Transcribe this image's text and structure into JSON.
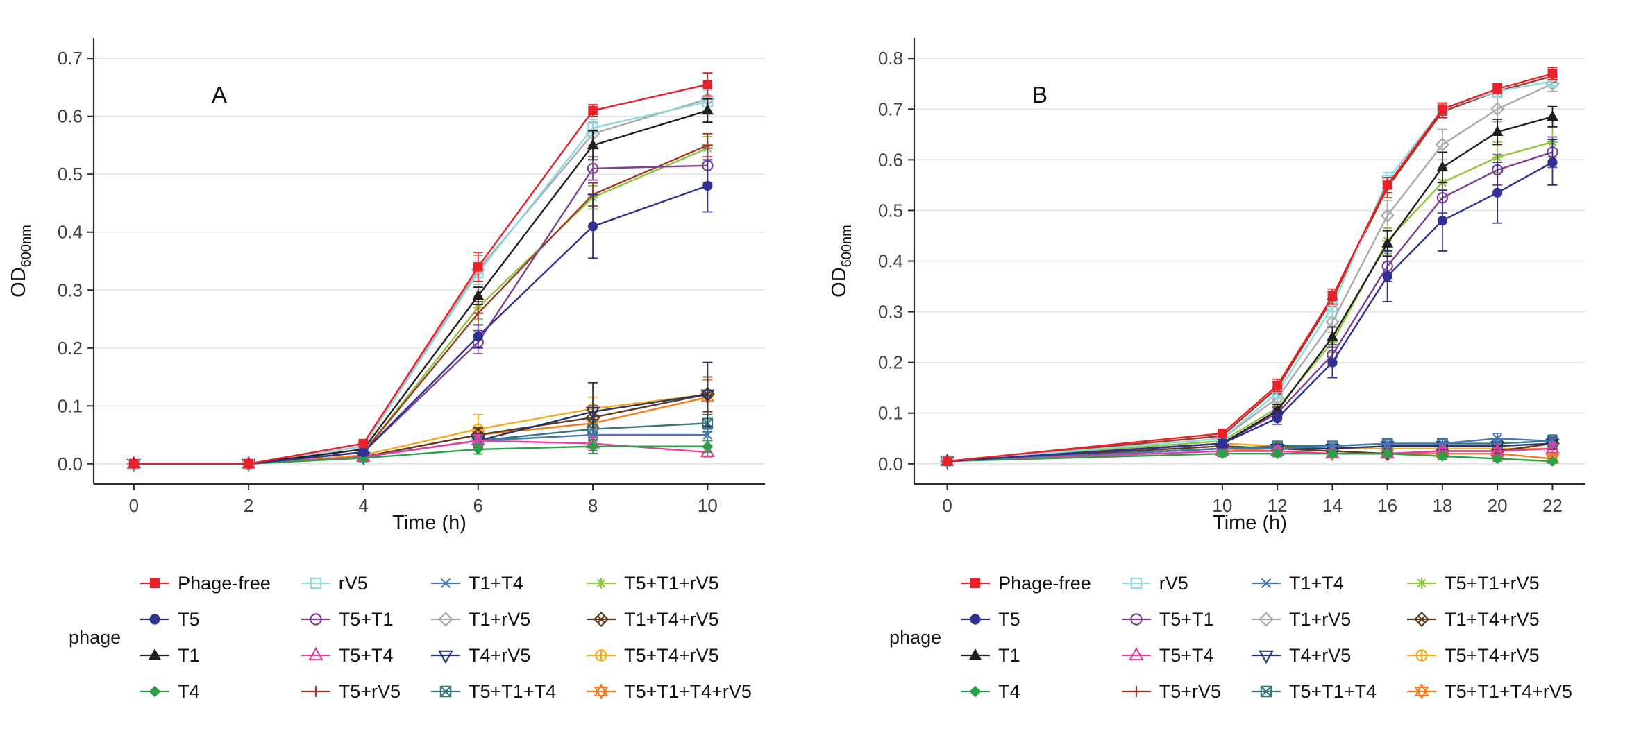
{
  "styles": {
    "background": "#ffffff",
    "grid_color": "#e3e3e3",
    "axis_color": "#2b2b2b",
    "tick_label_color": "#404040",
    "text_color": "#111111"
  },
  "figure": {
    "legend": {
      "title": "phage",
      "columns": 4,
      "rows": 4
    }
  },
  "series_styles": [
    {
      "name": "Phage-free",
      "color": "#ec2028",
      "marker": "square-filled"
    },
    {
      "name": "T5",
      "color": "#2e3192",
      "marker": "circle-filled"
    },
    {
      "name": "T1",
      "color": "#231f20",
      "marker": "triangle-filled"
    },
    {
      "name": "T4",
      "color": "#2ba147",
      "marker": "diamond-filled"
    },
    {
      "name": "rV5",
      "color": "#92d8e0",
      "marker": "square-open"
    },
    {
      "name": "T5+T1",
      "color": "#7f3f98",
      "marker": "circle-open"
    },
    {
      "name": "T5+T4",
      "color": "#e83e9c",
      "marker": "triangle-open"
    },
    {
      "name": "T5+rV5",
      "color": "#9e3a26",
      "marker": "plus"
    },
    {
      "name": "T1+T4",
      "color": "#4576b5",
      "marker": "x"
    },
    {
      "name": "T1+rV5",
      "color": "#a7a9ac",
      "marker": "diamond-open"
    },
    {
      "name": "T4+rV5",
      "color": "#27356e",
      "marker": "triangle-down-open"
    },
    {
      "name": "T5+T1+T4",
      "color": "#37767a",
      "marker": "square-x"
    },
    {
      "name": "T5+T1+rV5",
      "color": "#8dc63f",
      "marker": "asterisk"
    },
    {
      "name": "T1+T4+rV5",
      "color": "#5f3a1d",
      "marker": "diamond-x"
    },
    {
      "name": "T5+T4+rV5",
      "color": "#f5a81c",
      "marker": "circle-plus"
    },
    {
      "name": "T5+T1+T4+rV5",
      "color": "#f47b20",
      "marker": "star6"
    }
  ],
  "chart_data": [
    {
      "type": "line",
      "panel": "A",
      "xlabel": "Time (h)",
      "ylabel_main": "OD",
      "ylabel_sub": "600nm",
      "x": [
        0,
        2,
        4,
        6,
        8,
        10
      ],
      "xticks": [
        0,
        2,
        4,
        6,
        8,
        10
      ],
      "xlim": [
        -0.7,
        11
      ],
      "ylim": [
        -0.035,
        0.735
      ],
      "yticks": [
        0.0,
        0.1,
        0.2,
        0.3,
        0.4,
        0.5,
        0.6,
        0.7
      ],
      "grid": true,
      "legend_position": "bottom",
      "series": [
        {
          "name": "Phage-free",
          "values": [
            0,
            0,
            0.035,
            0.34,
            0.61,
            0.655
          ],
          "errors": [
            0,
            0,
            0.005,
            0.025,
            0.01,
            0.02
          ]
        },
        {
          "name": "T5",
          "values": [
            0,
            0,
            0.02,
            0.22,
            0.41,
            0.48
          ],
          "errors": [
            0,
            0,
            0.005,
            0.02,
            0.055,
            0.045
          ]
        },
        {
          "name": "T1",
          "values": [
            0,
            0,
            0.025,
            0.29,
            0.55,
            0.61
          ],
          "errors": [
            0,
            0,
            0.005,
            0.015,
            0.025,
            0.02
          ]
        },
        {
          "name": "T4",
          "values": [
            0,
            0,
            0.01,
            0.025,
            0.03,
            0.03
          ],
          "errors": [
            0,
            0,
            0.003,
            0.008,
            0.012,
            0.01
          ]
        },
        {
          "name": "rV5",
          "values": [
            0,
            0,
            0.03,
            0.33,
            0.58,
            0.625
          ],
          "errors": [
            0,
            0,
            0.005,
            0.02,
            0.015,
            0.02
          ]
        },
        {
          "name": "T5+T1",
          "values": [
            0,
            0,
            0.02,
            0.21,
            0.51,
            0.515
          ],
          "errors": [
            0,
            0,
            0.005,
            0.02,
            0.02,
            0.03
          ]
        },
        {
          "name": "T5+T4",
          "values": [
            0,
            0,
            0.012,
            0.04,
            0.035,
            0.02
          ],
          "errors": [
            0,
            0,
            0.004,
            0.01,
            0.012,
            0.008
          ]
        },
        {
          "name": "T5+rV5",
          "values": [
            0,
            0,
            0.02,
            0.26,
            0.465,
            0.55
          ],
          "errors": [
            0,
            0,
            0.005,
            0.02,
            0.02,
            0.02
          ]
        },
        {
          "name": "T1+T4",
          "values": [
            0,
            0,
            0.012,
            0.04,
            0.05,
            0.05
          ],
          "errors": [
            0,
            0,
            0.004,
            0.01,
            0.01,
            0.01
          ]
        },
        {
          "name": "T1+rV5",
          "values": [
            0,
            0,
            0.03,
            0.335,
            0.57,
            0.63
          ],
          "errors": [
            0,
            0,
            0.005,
            0.025,
            0.02,
            0.02
          ]
        },
        {
          "name": "T4+rV5",
          "values": [
            0,
            0,
            0.012,
            0.04,
            0.09,
            0.12
          ],
          "errors": [
            0,
            0,
            0.004,
            0.012,
            0.05,
            0.055
          ]
        },
        {
          "name": "T5+T1+T4",
          "values": [
            0,
            0,
            0.012,
            0.04,
            0.06,
            0.07
          ],
          "errors": [
            0,
            0,
            0.004,
            0.01,
            0.015,
            0.015
          ]
        },
        {
          "name": "T5+T1+rV5",
          "values": [
            0,
            0,
            0.02,
            0.27,
            0.46,
            0.545
          ],
          "errors": [
            0,
            0,
            0.005,
            0.02,
            0.02,
            0.02
          ]
        },
        {
          "name": "T1+T4+rV5",
          "values": [
            0,
            0,
            0.012,
            0.05,
            0.08,
            0.12
          ],
          "errors": [
            0,
            0,
            0.004,
            0.012,
            0.02,
            0.03
          ]
        },
        {
          "name": "T5+T4+rV5",
          "values": [
            0,
            0,
            0.015,
            0.06,
            0.095,
            0.12
          ],
          "errors": [
            0,
            0,
            0.005,
            0.025,
            0.02,
            0.055
          ]
        },
        {
          "name": "T5+T1+T4+rV5",
          "values": [
            0,
            0,
            0.012,
            0.05,
            0.07,
            0.115
          ],
          "errors": [
            0,
            0,
            0.004,
            0.012,
            0.02,
            0.03
          ]
        }
      ]
    },
    {
      "type": "line",
      "panel": "B",
      "xlabel": "Time (h)",
      "ylabel_main": "OD",
      "ylabel_sub": "600nm",
      "x": [
        0,
        10,
        12,
        14,
        16,
        18,
        20,
        22
      ],
      "xticks": [
        0,
        10,
        12,
        14,
        16,
        18,
        20,
        22
      ],
      "xlim": [
        -1.2,
        23.2
      ],
      "ylim": [
        -0.04,
        0.84
      ],
      "yticks": [
        0.0,
        0.1,
        0.2,
        0.3,
        0.4,
        0.5,
        0.6,
        0.7,
        0.8
      ],
      "grid": true,
      "legend_position": "bottom",
      "series": [
        {
          "name": "Phage-free",
          "values": [
            0.005,
            0.06,
            0.155,
            0.33,
            0.55,
            0.7,
            0.74,
            0.77
          ],
          "errors": [
            0.003,
            0.008,
            0.012,
            0.015,
            0.015,
            0.012,
            0.01,
            0.012
          ]
        },
        {
          "name": "T5",
          "values": [
            0.005,
            0.04,
            0.09,
            0.2,
            0.37,
            0.48,
            0.535,
            0.595
          ],
          "errors": [
            0.003,
            0.008,
            0.012,
            0.03,
            0.05,
            0.06,
            0.06,
            0.045
          ]
        },
        {
          "name": "T1",
          "values": [
            0.005,
            0.04,
            0.105,
            0.25,
            0.435,
            0.585,
            0.655,
            0.685
          ],
          "errors": [
            0.003,
            0.008,
            0.012,
            0.02,
            0.025,
            0.03,
            0.025,
            0.02
          ]
        },
        {
          "name": "T4",
          "values": [
            0.005,
            0.02,
            0.02,
            0.02,
            0.02,
            0.015,
            0.01,
            0.005
          ],
          "errors": [
            0.003,
            0.006,
            0.006,
            0.006,
            0.006,
            0.006,
            0.005,
            0.004
          ]
        },
        {
          "name": "rV5",
          "values": [
            0.005,
            0.05,
            0.14,
            0.31,
            0.56,
            0.7,
            0.735,
            0.755
          ],
          "errors": [
            0.003,
            0.008,
            0.012,
            0.02,
            0.015,
            0.012,
            0.012,
            0.012
          ]
        },
        {
          "name": "T5+T1",
          "values": [
            0.005,
            0.04,
            0.1,
            0.215,
            0.39,
            0.525,
            0.58,
            0.615
          ],
          "errors": [
            0.003,
            0.008,
            0.012,
            0.02,
            0.03,
            0.03,
            0.03,
            0.03
          ]
        },
        {
          "name": "T5+T4",
          "values": [
            0.005,
            0.025,
            0.025,
            0.02,
            0.02,
            0.025,
            0.025,
            0.03
          ],
          "errors": [
            0.003,
            0.006,
            0.006,
            0.006,
            0.006,
            0.006,
            0.006,
            0.008
          ]
        },
        {
          "name": "T5+rV5",
          "values": [
            0.005,
            0.055,
            0.15,
            0.325,
            0.545,
            0.695,
            0.735,
            0.765
          ],
          "errors": [
            0.003,
            0.008,
            0.012,
            0.015,
            0.02,
            0.012,
            0.012,
            0.012
          ]
        },
        {
          "name": "T1+T4",
          "values": [
            0.005,
            0.03,
            0.03,
            0.035,
            0.04,
            0.04,
            0.05,
            0.045
          ],
          "errors": [
            0.003,
            0.006,
            0.006,
            0.008,
            0.008,
            0.008,
            0.01,
            0.012
          ]
        },
        {
          "name": "T1+rV5",
          "values": [
            0.005,
            0.05,
            0.13,
            0.28,
            0.49,
            0.63,
            0.7,
            0.75
          ],
          "errors": [
            0.003,
            0.008,
            0.012,
            0.02,
            0.03,
            0.03,
            0.025,
            0.015
          ]
        },
        {
          "name": "T4+rV5",
          "values": [
            0.005,
            0.03,
            0.03,
            0.03,
            0.035,
            0.035,
            0.035,
            0.04
          ],
          "errors": [
            0.003,
            0.006,
            0.006,
            0.006,
            0.008,
            0.008,
            0.008,
            0.01
          ]
        },
        {
          "name": "T5+T1+T4",
          "values": [
            0.005,
            0.03,
            0.035,
            0.035,
            0.04,
            0.04,
            0.04,
            0.045
          ],
          "errors": [
            0.003,
            0.006,
            0.008,
            0.008,
            0.008,
            0.008,
            0.008,
            0.01
          ]
        },
        {
          "name": "T5+T1+rV5",
          "values": [
            0.005,
            0.045,
            0.11,
            0.24,
            0.44,
            0.555,
            0.605,
            0.635
          ],
          "errors": [
            0.003,
            0.008,
            0.012,
            0.02,
            0.025,
            0.03,
            0.03,
            0.03
          ]
        },
        {
          "name": "T1+T4+rV5",
          "values": [
            0.005,
            0.035,
            0.03,
            0.025,
            0.02,
            0.025,
            0.025,
            0.04
          ],
          "errors": [
            0.003,
            0.008,
            0.006,
            0.006,
            0.006,
            0.006,
            0.006,
            0.012
          ]
        },
        {
          "name": "T5+T4+rV5",
          "values": [
            0.005,
            0.04,
            0.035,
            0.03,
            0.03,
            0.03,
            0.03,
            0.03
          ],
          "errors": [
            0.003,
            0.008,
            0.008,
            0.006,
            0.006,
            0.006,
            0.006,
            0.008
          ]
        },
        {
          "name": "T5+T1+T4+rV5",
          "values": [
            0.005,
            0.03,
            0.025,
            0.02,
            0.02,
            0.02,
            0.02,
            0.01
          ],
          "errors": [
            0.003,
            0.006,
            0.006,
            0.006,
            0.006,
            0.006,
            0.006,
            0.005
          ]
        }
      ]
    }
  ]
}
